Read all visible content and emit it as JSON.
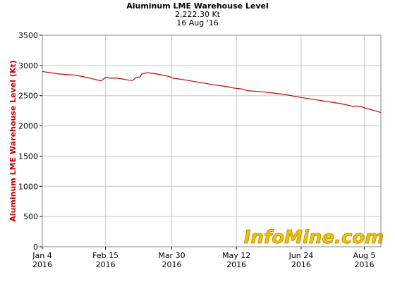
{
  "chart_data": {
    "type": "line",
    "title": "Aluminum LME Warehouse Level",
    "subtitle": "2,222.30 Kt",
    "date_label": "16 Aug '16",
    "y_label": "Aluminum LME Warehouse Level (Kt)",
    "watermark": "InfoMine.com",
    "x": [
      "2016-01-04",
      "2016-01-15",
      "2016-01-26",
      "2016-02-01",
      "2016-02-08",
      "2016-02-12",
      "2016-02-15",
      "2016-02-19",
      "2016-02-23",
      "2016-03-01",
      "2016-03-04",
      "2016-03-06",
      "2016-03-09",
      "2016-03-10",
      "2016-03-14",
      "2016-03-20",
      "2016-03-28",
      "2016-03-31",
      "2016-04-08",
      "2016-04-20",
      "2016-04-27",
      "2016-05-06",
      "2016-05-09",
      "2016-05-16",
      "2016-05-19",
      "2016-05-31",
      "2016-06-13",
      "2016-06-24",
      "2016-07-07",
      "2016-07-20",
      "2016-07-29",
      "2016-07-30",
      "2016-08-03",
      "2016-08-06",
      "2016-08-10",
      "2016-08-16"
    ],
    "series": [
      {
        "name": "Aluminum LME Warehouse Level",
        "color": "#cc0000",
        "values": [
          2900,
          2860,
          2840,
          2810,
          2770,
          2745,
          2800,
          2790,
          2790,
          2760,
          2750,
          2800,
          2810,
          2860,
          2880,
          2860,
          2820,
          2790,
          2760,
          2710,
          2680,
          2650,
          2630,
          2610,
          2585,
          2560,
          2520,
          2470,
          2420,
          2370,
          2320,
          2330,
          2320,
          2290,
          2265,
          2222.3
        ]
      }
    ],
    "xlim": [
      "2016-01-04",
      "2016-08-16"
    ],
    "xticks": [
      {
        "value": "2016-01-04",
        "label": "Jan 4",
        "year": "2016"
      },
      {
        "value": "2016-02-15",
        "label": "Feb 15",
        "year": "2016"
      },
      {
        "value": "2016-03-30",
        "label": "Mar 30",
        "year": "2016"
      },
      {
        "value": "2016-05-12",
        "label": "May 12",
        "year": "2016"
      },
      {
        "value": "2016-06-24",
        "label": "Jun 24",
        "year": "2016"
      },
      {
        "value": "2016-08-05",
        "label": "Aug 5",
        "year": "2016"
      }
    ],
    "ylim": [
      0,
      3500
    ],
    "yticks": [
      0,
      500,
      1000,
      1500,
      2000,
      2500,
      3000,
      3500
    ],
    "grid": true
  }
}
